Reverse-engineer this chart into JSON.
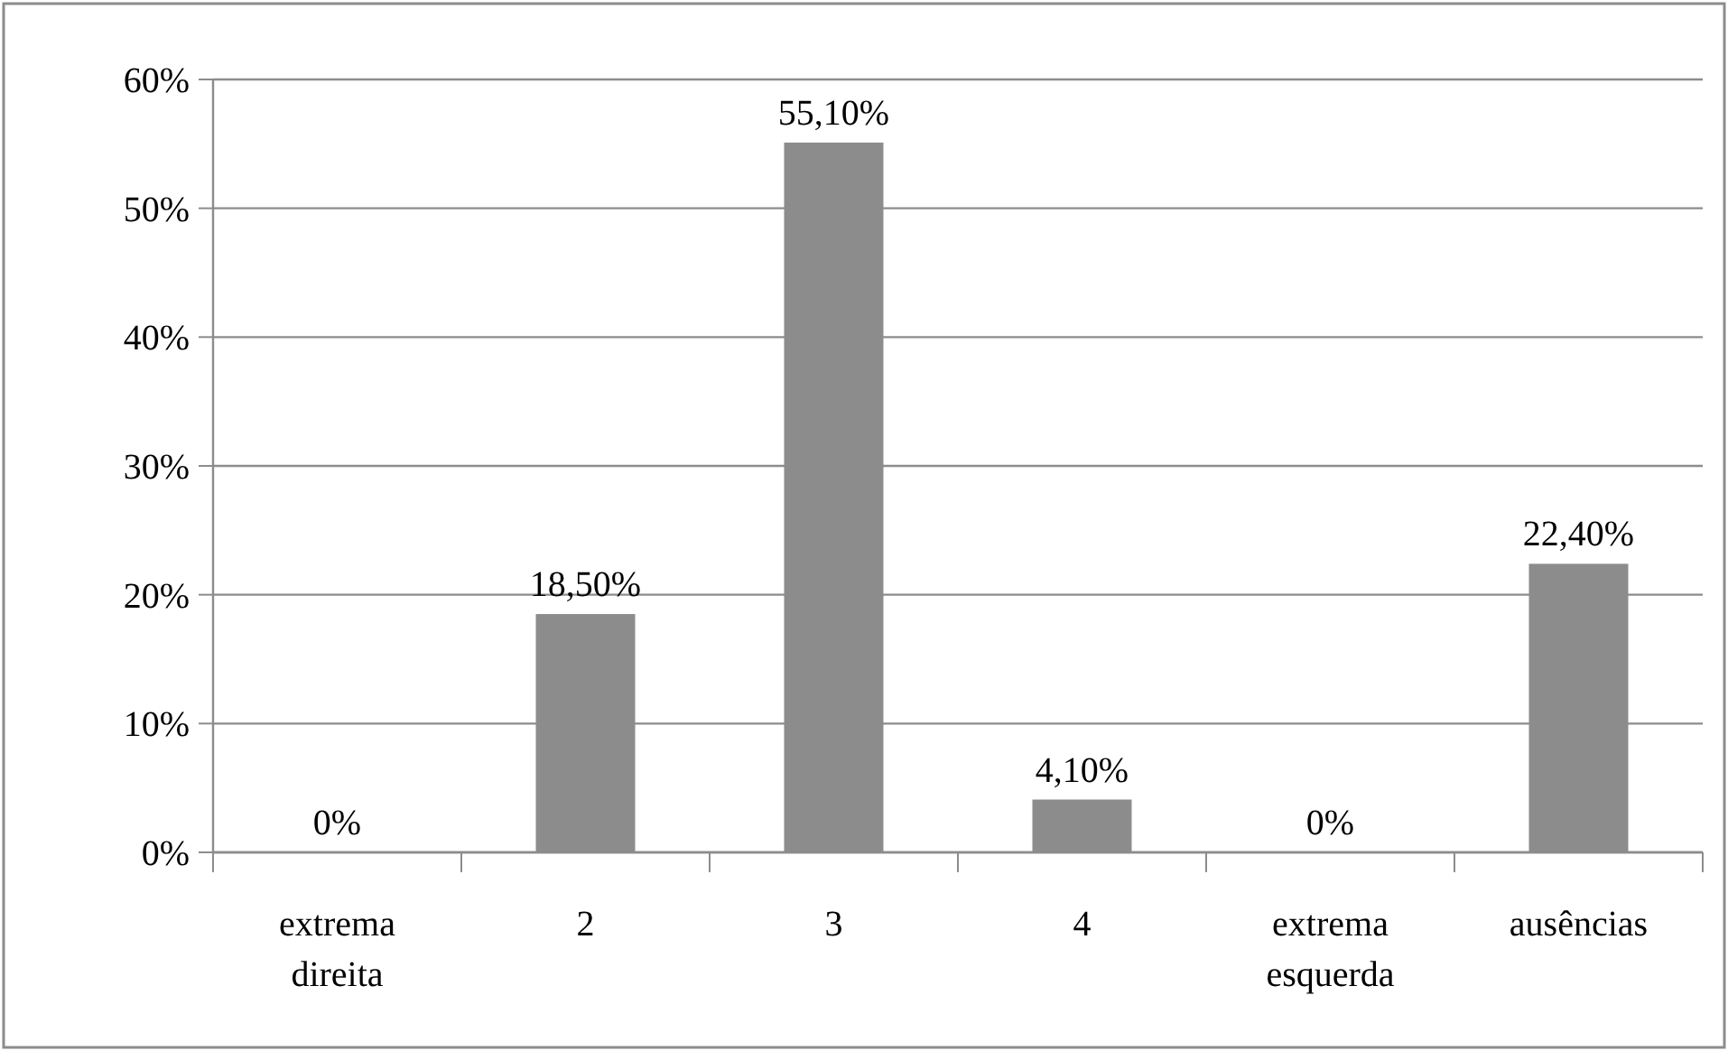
{
  "chart_data": {
    "type": "bar",
    "categories": [
      "extrema direita",
      "2",
      "3",
      "4",
      "extrema esquerda",
      "ausências"
    ],
    "values": [
      0,
      18.5,
      55.1,
      4.1,
      0,
      22.4
    ],
    "value_labels": [
      "0%",
      "18,50%",
      "55,10%",
      "4,10%",
      "0%",
      "22,40%"
    ],
    "color": "#8c8c8c",
    "ylim": [
      0,
      60
    ],
    "yticks": [
      {
        "value": 0,
        "label": "0%"
      },
      {
        "value": 10,
        "label": "10%"
      },
      {
        "value": 20,
        "label": "20%"
      },
      {
        "value": 30,
        "label": "30%"
      },
      {
        "value": 40,
        "label": "40%"
      },
      {
        "value": 50,
        "label": "50%"
      },
      {
        "value": 60,
        "label": "60%"
      }
    ],
    "grid": "y"
  }
}
